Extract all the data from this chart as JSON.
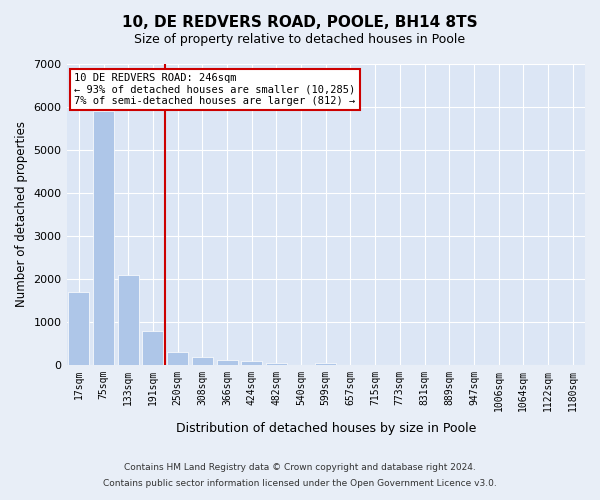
{
  "title1": "10, DE REDVERS ROAD, POOLE, BH14 8TS",
  "title2": "Size of property relative to detached houses in Poole",
  "xlabel": "Distribution of detached houses by size in Poole",
  "ylabel": "Number of detached properties",
  "annotation_line1": "10 DE REDVERS ROAD: 246sqm",
  "annotation_line2": "← 93% of detached houses are smaller (10,285)",
  "annotation_line3": "7% of semi-detached houses are larger (812) →",
  "footnote1": "Contains HM Land Registry data © Crown copyright and database right 2024.",
  "footnote2": "Contains public sector information licensed under the Open Government Licence v3.0.",
  "bar_color": "#aec6e8",
  "vline_color": "#cc0000",
  "vline_x": 3.5,
  "annotation_box_color": "#cc0000",
  "background_color": "#e8eef7",
  "plot_bg_color": "#dce6f5",
  "categories": [
    "17sqm",
    "75sqm",
    "133sqm",
    "191sqm",
    "250sqm",
    "308sqm",
    "366sqm",
    "424sqm",
    "482sqm",
    "540sqm",
    "599sqm",
    "657sqm",
    "715sqm",
    "773sqm",
    "831sqm",
    "889sqm",
    "947sqm",
    "1006sqm",
    "1064sqm",
    "1122sqm",
    "1180sqm"
  ],
  "values": [
    1700,
    5900,
    2100,
    800,
    290,
    190,
    110,
    80,
    50,
    0,
    50,
    0,
    0,
    0,
    0,
    0,
    0,
    0,
    0,
    0,
    0
  ],
  "ylim": [
    0,
    7000
  ],
  "yticks": [
    0,
    1000,
    2000,
    3000,
    4000,
    5000,
    6000,
    7000
  ]
}
